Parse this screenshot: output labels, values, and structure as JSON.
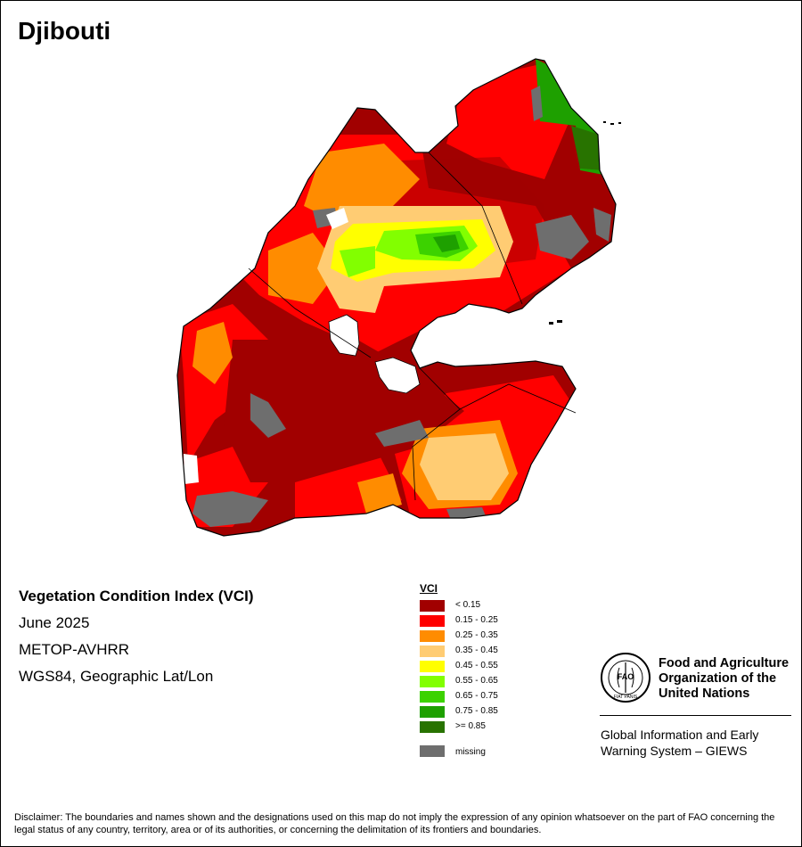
{
  "title": "Djibouti",
  "info": {
    "index_name": "Vegetation Condition Index (VCI)",
    "period": "June 2025",
    "sensor": "METOP-AVHRR",
    "projection": "WGS84, Geographic Lat/Lon"
  },
  "legend": {
    "title": "VCI",
    "classes": [
      {
        "label": "< 0.15",
        "color": "#a10000"
      },
      {
        "label": "0.15 - 0.25",
        "color": "#ff0000"
      },
      {
        "label": "0.25 - 0.35",
        "color": "#ff8c00"
      },
      {
        "label": "0.35 - 0.45",
        "color": "#ffcc73"
      },
      {
        "label": "0.45 - 0.55",
        "color": "#ffff00"
      },
      {
        "label": "0.55 - 0.65",
        "color": "#82ff00"
      },
      {
        "label": "0.65 - 0.75",
        "color": "#3cd200"
      },
      {
        "label": "0.75 - 0.85",
        "color": "#1ea000"
      },
      {
        "label": ">= 0.85",
        "color": "#287300"
      }
    ],
    "missing": {
      "label": "missing",
      "color": "#6e6e6e"
    }
  },
  "organization": {
    "line1": "Food and Agriculture",
    "line2": "Organization of the",
    "line3": "United Nations",
    "program_line1": "Global Information and Early",
    "program_line2": "Warning System – GIEWS",
    "logo_text": "FAO",
    "logo_motto": "FIAT PANIS"
  },
  "disclaimer": "Disclaimer: The boundaries and names shown and the designations used on this map do not imply the expression of any opinion whatsoever on the part of FAO concerning the legal status of any country, territory, area or of its authorities, or concerning the delimitation of its frontiers and boundaries."
}
